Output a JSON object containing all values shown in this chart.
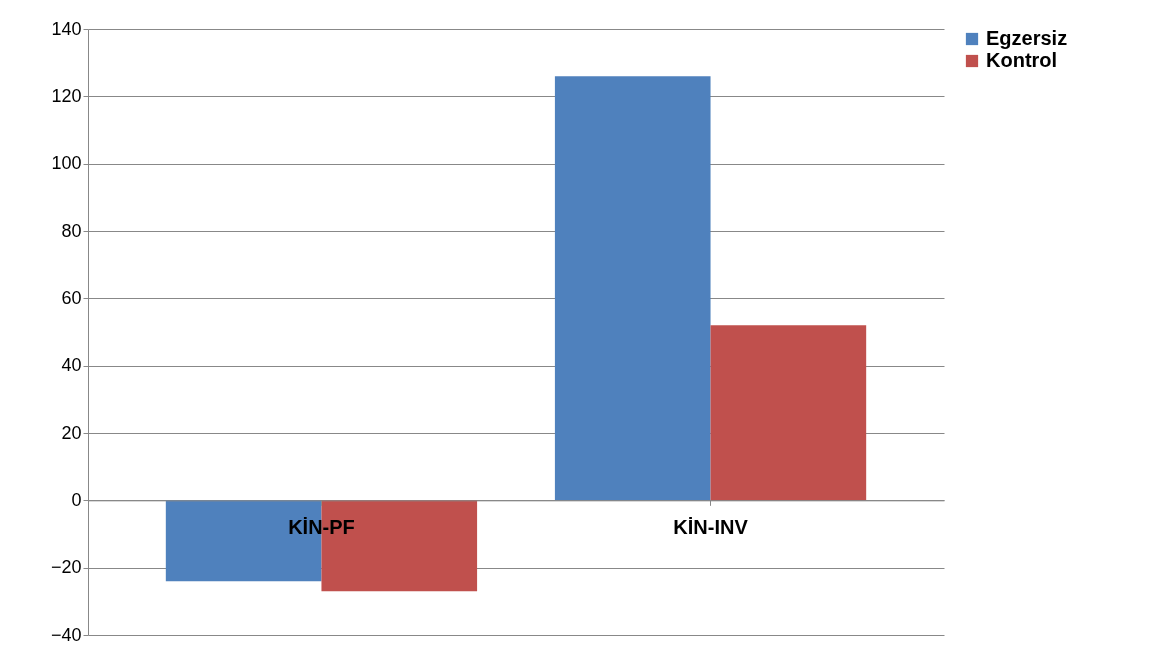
{
  "chart_data": {
    "type": "bar",
    "categories": [
      "KİN-PF",
      "KİN-INV"
    ],
    "series": [
      {
        "name": "Egzersiz",
        "color": "#4f81bd",
        "values": [
          -24,
          126
        ]
      },
      {
        "name": "Kontrol",
        "color": "#c0504d",
        "values": [
          -27,
          52
        ]
      }
    ],
    "ylim": [
      -40,
      140
    ],
    "yticks": [
      -40,
      -20,
      0,
      20,
      40,
      60,
      80,
      100,
      120,
      140
    ],
    "grid": "y",
    "legend": "right"
  }
}
